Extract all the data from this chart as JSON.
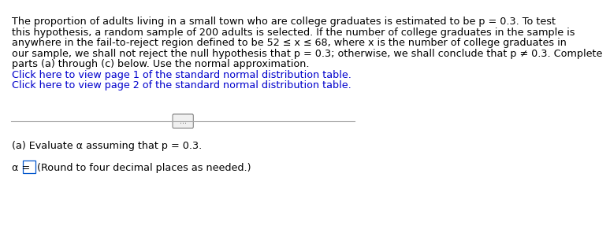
{
  "bg_color": "#ffffff",
  "text_color": "#000000",
  "link_color": "#0000cc",
  "font_size_main": 9.2,
  "paragraph1_lines": [
    "The proportion of adults living in a small town who are college graduates is estimated to be p = 0.3. To test",
    "this hypothesis, a random sample of 200 adults is selected. If the number of college graduates in the sample is",
    "anywhere in the fail-to-reject region defined to be 52 ≤ x ≤ 68, where x is the number of college graduates in",
    "our sample, we shall not reject the null hypothesis that p = 0.3; otherwise, we shall conclude that p ≠ 0.3. Complete",
    "parts (a) through (c) below. Use the normal approximation."
  ],
  "link1": "Click here to view page 1 of the standard normal distribution table.",
  "link2": "Click here to view page 2 of the standard normal distribution table.",
  "divider_text": "...",
  "part_a_label": "(a) Evaluate α assuming that p = 0.3.",
  "alpha_line": "α =",
  "round_note": "(Round to four decimal places as needed.)"
}
